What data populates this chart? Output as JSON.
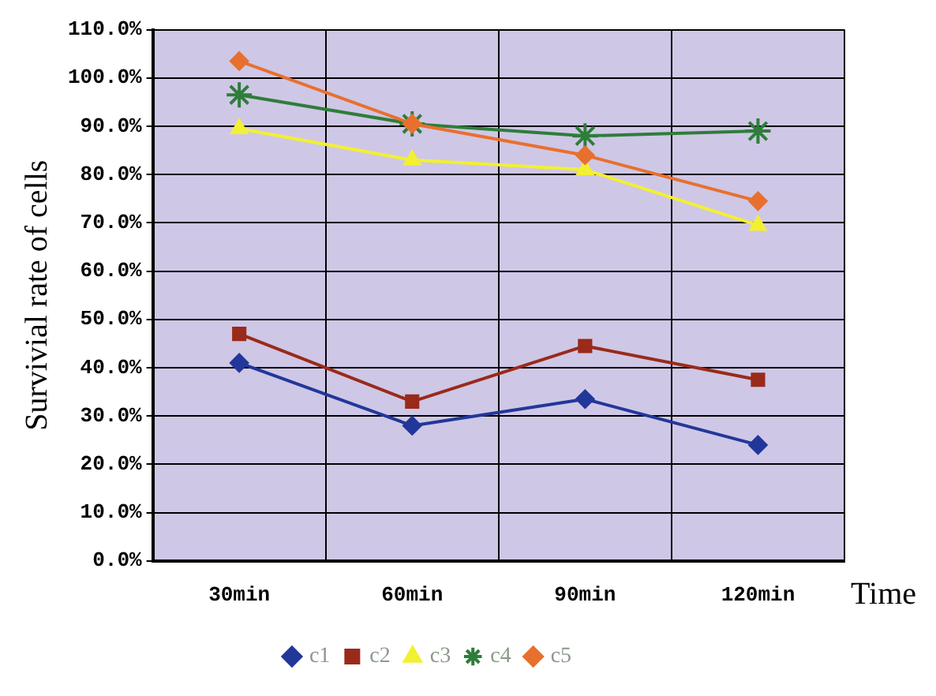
{
  "chart_data": {
    "type": "line",
    "ylabel": "Survivial rate of cells",
    "xlabel": "Time",
    "categories": [
      "30min",
      "60min",
      "90min",
      "120min"
    ],
    "series": [
      {
        "name": "c1",
        "color": "#22379a",
        "values": [
          41,
          28,
          33.5,
          24
        ],
        "marker": "diamond"
      },
      {
        "name": "c2",
        "color": "#9a2a1a",
        "values": [
          47,
          33,
          44.5,
          37.5
        ],
        "marker": "square"
      },
      {
        "name": "c3",
        "color": "#f2f032",
        "values": [
          89.5,
          83,
          81,
          69.5
        ],
        "marker": "triangle"
      },
      {
        "name": "c4",
        "color": "#2e7d3a",
        "values": [
          96.5,
          90.5,
          88,
          89
        ],
        "marker": "cross"
      },
      {
        "name": "c5",
        "color": "#e8702e",
        "values": [
          103.5,
          90.5,
          84,
          74.5
        ],
        "marker": "diamond"
      }
    ],
    "ylim": [
      0,
      110
    ],
    "yticks": [
      {
        "value": 0,
        "label": "0.0%"
      },
      {
        "value": 10,
        "label": "10.0%"
      },
      {
        "value": 20,
        "label": "20.0%"
      },
      {
        "value": 30,
        "label": "30.0%"
      },
      {
        "value": 40,
        "label": "40.0%"
      },
      {
        "value": 50,
        "label": "50.0%"
      },
      {
        "value": 60,
        "label": "60.0%"
      },
      {
        "value": 70,
        "label": "70.0%"
      },
      {
        "value": 80,
        "label": "80.0%"
      },
      {
        "value": 90,
        "label": "90.0%"
      },
      {
        "value": 100,
        "label": "100.0%"
      },
      {
        "value": 110,
        "label": "110.0%"
      }
    ],
    "grid": true,
    "legend": "bottom",
    "line_style": "solid"
  }
}
